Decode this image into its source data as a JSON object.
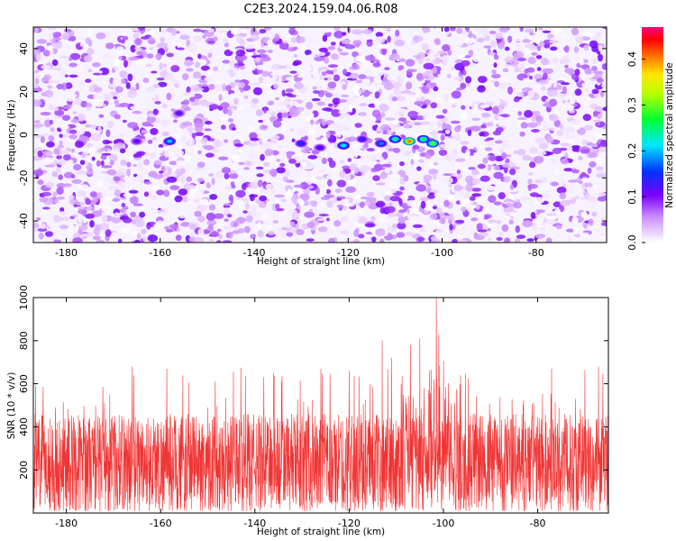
{
  "title": "C2E3.2024.159.04.06.R08",
  "chart_data": [
    {
      "type": "heatmap",
      "xlabel": "Height of straight line (km)",
      "ylabel": "Frequency (Hz)",
      "xlim": [
        -187,
        -65
      ],
      "ylim": [
        -50,
        50
      ],
      "x_ticks": [
        -180,
        -160,
        -140,
        -120,
        -100,
        -80
      ],
      "y_ticks": [
        -40,
        -20,
        0,
        20,
        40
      ],
      "grid": false,
      "colorbar": {
        "label": "Normalized spectral amplitude",
        "range": [
          0.0,
          0.47
        ],
        "ticks": [
          0.0,
          0.1,
          0.2,
          0.3,
          0.4
        ],
        "colormap": "white-violet-blue-cyan-green-yellow-red-magenta"
      },
      "hotspots": [
        {
          "x": -158,
          "y": -3,
          "amplitude": 0.2
        },
        {
          "x": -156,
          "y": 10,
          "amplitude": 0.12
        },
        {
          "x": -165,
          "y": -3,
          "amplitude": 0.12
        },
        {
          "x": -130,
          "y": -4,
          "amplitude": 0.15
        },
        {
          "x": -126,
          "y": -6,
          "amplitude": 0.13
        },
        {
          "x": -121,
          "y": -5,
          "amplitude": 0.22
        },
        {
          "x": -117,
          "y": -2,
          "amplitude": 0.14
        },
        {
          "x": -113,
          "y": -4,
          "amplitude": 0.18
        },
        {
          "x": -110,
          "y": -2,
          "amplitude": 0.24
        },
        {
          "x": -107,
          "y": -3,
          "amplitude": 0.4
        },
        {
          "x": -104,
          "y": -2,
          "amplitude": 0.26
        },
        {
          "x": -102,
          "y": -4,
          "amplitude": 0.3
        }
      ]
    },
    {
      "type": "line",
      "xlabel": "Height of straight line (km)",
      "ylabel": "SNR (10 * v/v)",
      "xlim": [
        -187,
        -65
      ],
      "ylim": [
        0,
        1000
      ],
      "x_ticks": [
        -180,
        -160,
        -140,
        -120,
        -100,
        -80
      ],
      "y_ticks": [
        200,
        400,
        600,
        800,
        1000
      ],
      "grid": false,
      "series": [
        {
          "color": "#f03434",
          "baseline": 230,
          "noise_amplitude": 230,
          "peaks": [
            {
              "x": -101.5,
              "y": 1000
            },
            {
              "x": -101,
              "y": 830
            },
            {
              "x": -105,
              "y": 810
            },
            {
              "x": -107,
              "y": 780
            },
            {
              "x": -113,
              "y": 800
            },
            {
              "x": -126,
              "y": 670
            },
            {
              "x": -166,
              "y": 680
            },
            {
              "x": -120,
              "y": 660
            },
            {
              "x": -136,
              "y": 650
            },
            {
              "x": -111,
              "y": 720
            }
          ]
        }
      ]
    }
  ]
}
